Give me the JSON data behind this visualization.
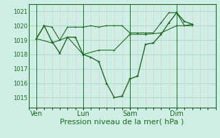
{
  "background_color": "#ceeee6",
  "grid_major_color": "#aad4c8",
  "grid_minor_color": "#e8c8c8",
  "line_color": "#1a6b1a",
  "xlabel": "Pression niveau de la mer( hPa )",
  "xlabel_fontsize": 8,
  "ylim": [
    1014.3,
    1021.5
  ],
  "yticks": [
    1015,
    1016,
    1017,
    1018,
    1019,
    1020,
    1021
  ],
  "ytick_fontsize": 6,
  "xtick_labels": [
    "Ven",
    "Lun",
    "Sam",
    "Dim"
  ],
  "xtick_positions": [
    0,
    3,
    6,
    9
  ],
  "xlim": [
    -0.5,
    11.5
  ],
  "vline_positions": [
    0,
    3,
    6,
    9
  ],
  "series1_x": [
    0,
    0.5,
    1.0,
    1.5,
    2.0,
    2.5,
    3.0,
    3.5,
    4.0,
    4.5,
    5.0,
    5.5,
    6.0,
    6.5,
    7.0,
    7.5,
    8.0,
    8.5,
    9.0,
    9.5,
    10.0
  ],
  "series1_y": [
    1019.1,
    1020.0,
    1019.9,
    1019.0,
    1019.9,
    1019.9,
    1019.9,
    1020.0,
    1019.9,
    1020.0,
    1020.0,
    1020.0,
    1019.5,
    1019.5,
    1019.5,
    1019.5,
    1020.2,
    1020.9,
    1020.9,
    1020.0,
    1020.1
  ],
  "series2_x": [
    0,
    0.5,
    1.0,
    1.5,
    2.0,
    2.5,
    3.0,
    3.5,
    4.0,
    4.5,
    5.0,
    5.5,
    6.0,
    6.5,
    7.0,
    7.5,
    8.0,
    8.5,
    9.0,
    9.5,
    10.0
  ],
  "series2_y": [
    1019.1,
    1020.0,
    1018.9,
    1018.1,
    1019.2,
    1019.2,
    1018.0,
    1017.8,
    1017.5,
    1016.0,
    1015.0,
    1015.1,
    1016.3,
    1016.5,
    1018.7,
    1018.8,
    1019.4,
    1020.2,
    1020.9,
    1020.3,
    1020.1
  ],
  "series3_x": [
    0,
    1,
    2,
    3,
    4,
    5,
    6,
    7,
    8,
    9,
    10
  ],
  "series3_y": [
    1019.1,
    1018.8,
    1019.2,
    1018.0,
    1018.3,
    1018.3,
    1019.4,
    1019.4,
    1019.5,
    1020.0,
    1020.0
  ]
}
